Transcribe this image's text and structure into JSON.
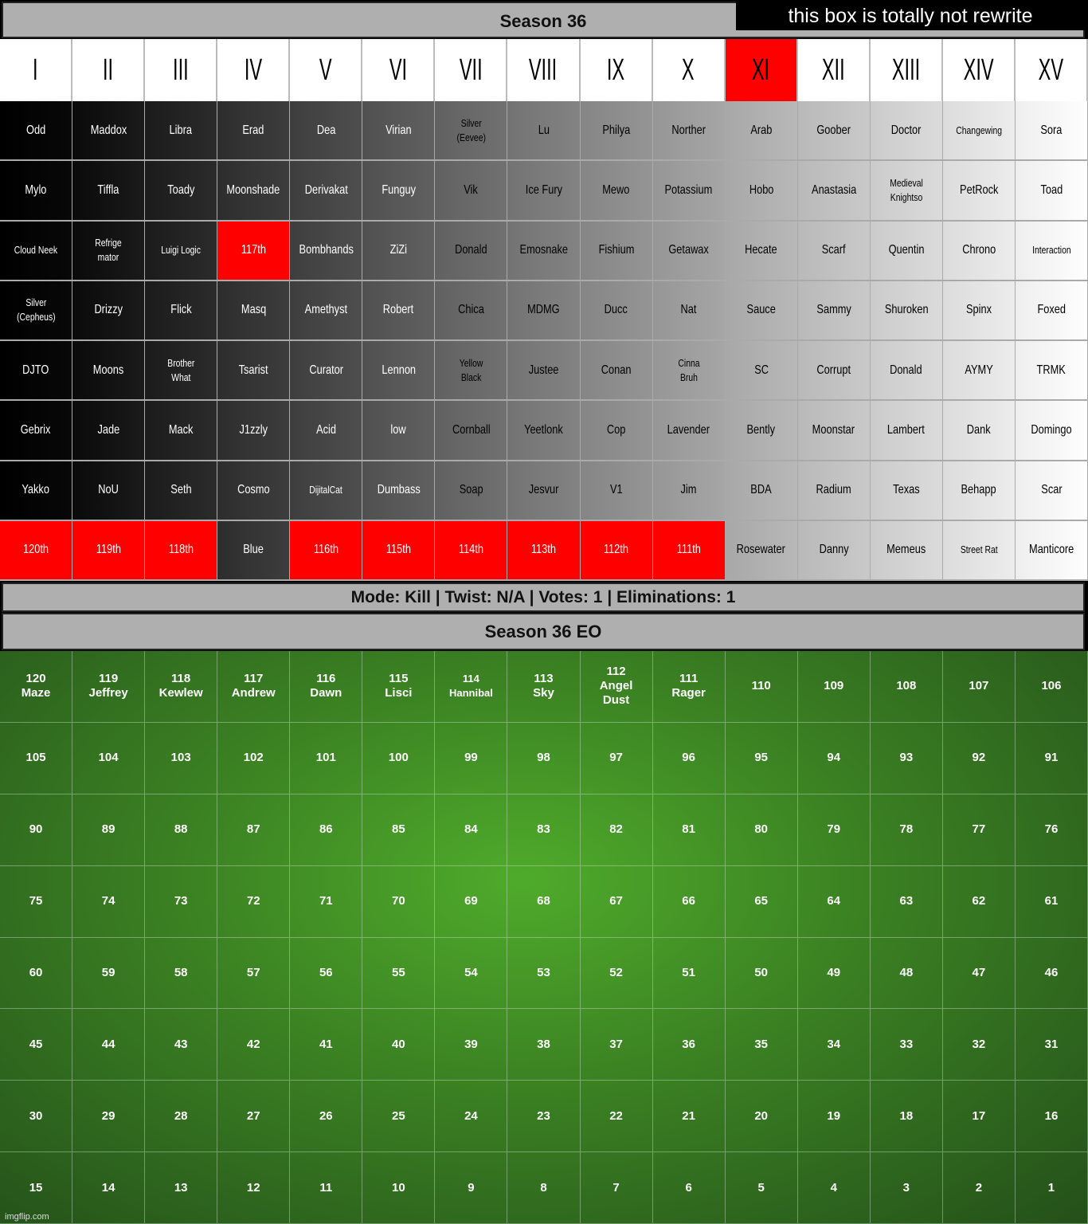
{
  "title": "Season 36",
  "note_box": "this box is totally not rewrite",
  "colors": {
    "eliminated": "#ff0000",
    "gray_start": "#000000",
    "gray_end": "#f6f6f6",
    "green_center": "#4fab2b",
    "green_edge": "#24501a"
  },
  "numerals": [
    {
      "label": "I"
    },
    {
      "label": "II"
    },
    {
      "label": "III"
    },
    {
      "label": "IV"
    },
    {
      "label": "V"
    },
    {
      "label": "VI"
    },
    {
      "label": "VII"
    },
    {
      "label": "VIII"
    },
    {
      "label": "IX"
    },
    {
      "label": "X"
    },
    {
      "label": "XI",
      "highlight": true
    },
    {
      "label": "XII"
    },
    {
      "label": "XIII"
    },
    {
      "label": "XIV"
    },
    {
      "label": "XV"
    }
  ],
  "rows": [
    [
      {
        "t": "Odd"
      },
      {
        "t": "Maddox"
      },
      {
        "t": "Libra"
      },
      {
        "t": "Erad"
      },
      {
        "t": "Dea"
      },
      {
        "t": "Virian"
      },
      {
        "t": "Silver\n(Eevee)"
      },
      {
        "t": "Lu"
      },
      {
        "t": "Philya"
      },
      {
        "t": "Norther"
      },
      {
        "t": "Arab"
      },
      {
        "t": "Goober"
      },
      {
        "t": "Doctor"
      },
      {
        "t": "Changewing"
      },
      {
        "t": "Sora"
      }
    ],
    [
      {
        "t": "Mylo"
      },
      {
        "t": "Tiffla"
      },
      {
        "t": "Toady"
      },
      {
        "t": "Moonshade"
      },
      {
        "t": "Derivakat"
      },
      {
        "t": "Funguy"
      },
      {
        "t": "Vik"
      },
      {
        "t": "Ice Fury"
      },
      {
        "t": "Mewo"
      },
      {
        "t": "Potassium"
      },
      {
        "t": "Hobo"
      },
      {
        "t": "Anastasia"
      },
      {
        "t": "Medieval\nKnightso"
      },
      {
        "t": "PetRock"
      },
      {
        "t": "Toad"
      }
    ],
    [
      {
        "t": "Cloud Neek"
      },
      {
        "t": "Refrige\nmator"
      },
      {
        "t": "Luigi Logic"
      },
      {
        "t": "117th",
        "eliminated": true
      },
      {
        "t": "Bombhands"
      },
      {
        "t": "ZiZi"
      },
      {
        "t": "Donald"
      },
      {
        "t": "Emosnake"
      },
      {
        "t": "Fishium"
      },
      {
        "t": "Getawax"
      },
      {
        "t": "Hecate"
      },
      {
        "t": "Scarf"
      },
      {
        "t": "Quentin"
      },
      {
        "t": "Chrono"
      },
      {
        "t": "Interaction"
      }
    ],
    [
      {
        "t": "Silver\n(Cepheus)"
      },
      {
        "t": "Drizzy"
      },
      {
        "t": "Flick"
      },
      {
        "t": "Masq"
      },
      {
        "t": "Amethyst"
      },
      {
        "t": "Robert"
      },
      {
        "t": "Chica"
      },
      {
        "t": "MDMG"
      },
      {
        "t": "Ducc"
      },
      {
        "t": "Nat"
      },
      {
        "t": "Sauce"
      },
      {
        "t": "Sammy"
      },
      {
        "t": "Shuroken"
      },
      {
        "t": "Spinx"
      },
      {
        "t": "Foxed"
      }
    ],
    [
      {
        "t": "DJTO"
      },
      {
        "t": "Moons"
      },
      {
        "t": "Brother\nWhat"
      },
      {
        "t": "Tsarist"
      },
      {
        "t": "Curator"
      },
      {
        "t": "Lennon"
      },
      {
        "t": "Yellow\nBlack"
      },
      {
        "t": "Justee"
      },
      {
        "t": "Conan"
      },
      {
        "t": "Cinna\nBruh"
      },
      {
        "t": "SC"
      },
      {
        "t": "Corrupt"
      },
      {
        "t": "Donald"
      },
      {
        "t": "AYMY"
      },
      {
        "t": "TRMK"
      }
    ],
    [
      {
        "t": "Gebrix"
      },
      {
        "t": "Jade"
      },
      {
        "t": "Mack"
      },
      {
        "t": "J1zzly"
      },
      {
        "t": "Acid"
      },
      {
        "t": "low"
      },
      {
        "t": "Cornball"
      },
      {
        "t": "Yeetlonk"
      },
      {
        "t": "Cop"
      },
      {
        "t": "Lavender"
      },
      {
        "t": "Bently"
      },
      {
        "t": "Moonstar"
      },
      {
        "t": "Lambert"
      },
      {
        "t": "Dank"
      },
      {
        "t": "Domingo"
      }
    ],
    [
      {
        "t": "Yakko"
      },
      {
        "t": "NoU"
      },
      {
        "t": "Seth"
      },
      {
        "t": "Cosmo"
      },
      {
        "t": "DijitalCat"
      },
      {
        "t": "Dumbass"
      },
      {
        "t": "Soap"
      },
      {
        "t": "Jesvur"
      },
      {
        "t": "V1"
      },
      {
        "t": "Jim"
      },
      {
        "t": "BDA"
      },
      {
        "t": "Radium"
      },
      {
        "t": "Texas"
      },
      {
        "t": "Behapp"
      },
      {
        "t": "Scar"
      }
    ],
    [
      {
        "t": "120th",
        "eliminated": true
      },
      {
        "t": "119th",
        "eliminated": true
      },
      {
        "t": "118th",
        "eliminated": true
      },
      {
        "t": "Blue"
      },
      {
        "t": "116th",
        "eliminated": true
      },
      {
        "t": "115th",
        "eliminated": true
      },
      {
        "t": "114th",
        "eliminated": true
      },
      {
        "t": "113th",
        "eliminated": true
      },
      {
        "t": "112th",
        "eliminated": true
      },
      {
        "t": "111th",
        "eliminated": true
      },
      {
        "t": "Rosewater"
      },
      {
        "t": "Danny"
      },
      {
        "t": "Memeus"
      },
      {
        "t": "Street Rat"
      },
      {
        "t": "Manticore"
      }
    ]
  ],
  "mode_bar": "Mode: Kill | Twist: N/A | Votes: 1 | Eliminations: 1",
  "eo_title": "Season 36 EO",
  "eo_cells": [
    "120\nMaze",
    "119\nJeffrey",
    "118\nKewlew",
    "117\nAndrew",
    "116\nDawn",
    "115\nLisci",
    "114\nHannibal",
    "113\nSky",
    "112\nAngel\nDust",
    "111\nRager",
    "110",
    "109",
    "108",
    "107",
    "106",
    "105",
    "104",
    "103",
    "102",
    "101",
    "100",
    "99",
    "98",
    "97",
    "96",
    "95",
    "94",
    "93",
    "92",
    "91",
    "90",
    "89",
    "88",
    "87",
    "86",
    "85",
    "84",
    "83",
    "82",
    "81",
    "80",
    "79",
    "78",
    "77",
    "76",
    "75",
    "74",
    "73",
    "72",
    "71",
    "70",
    "69",
    "68",
    "67",
    "66",
    "65",
    "64",
    "63",
    "62",
    "61",
    "60",
    "59",
    "58",
    "57",
    "56",
    "55",
    "54",
    "53",
    "52",
    "51",
    "50",
    "49",
    "48",
    "47",
    "46",
    "45",
    "44",
    "43",
    "42",
    "41",
    "40",
    "39",
    "38",
    "37",
    "36",
    "35",
    "34",
    "33",
    "32",
    "31",
    "30",
    "29",
    "28",
    "27",
    "26",
    "25",
    "24",
    "23",
    "22",
    "21",
    "20",
    "19",
    "18",
    "17",
    "16",
    "15",
    "14",
    "13",
    "12",
    "11",
    "10",
    "9",
    "8",
    "7",
    "6",
    "5",
    "4",
    "3",
    "2",
    "1"
  ],
  "watermark": "imgflip.com"
}
